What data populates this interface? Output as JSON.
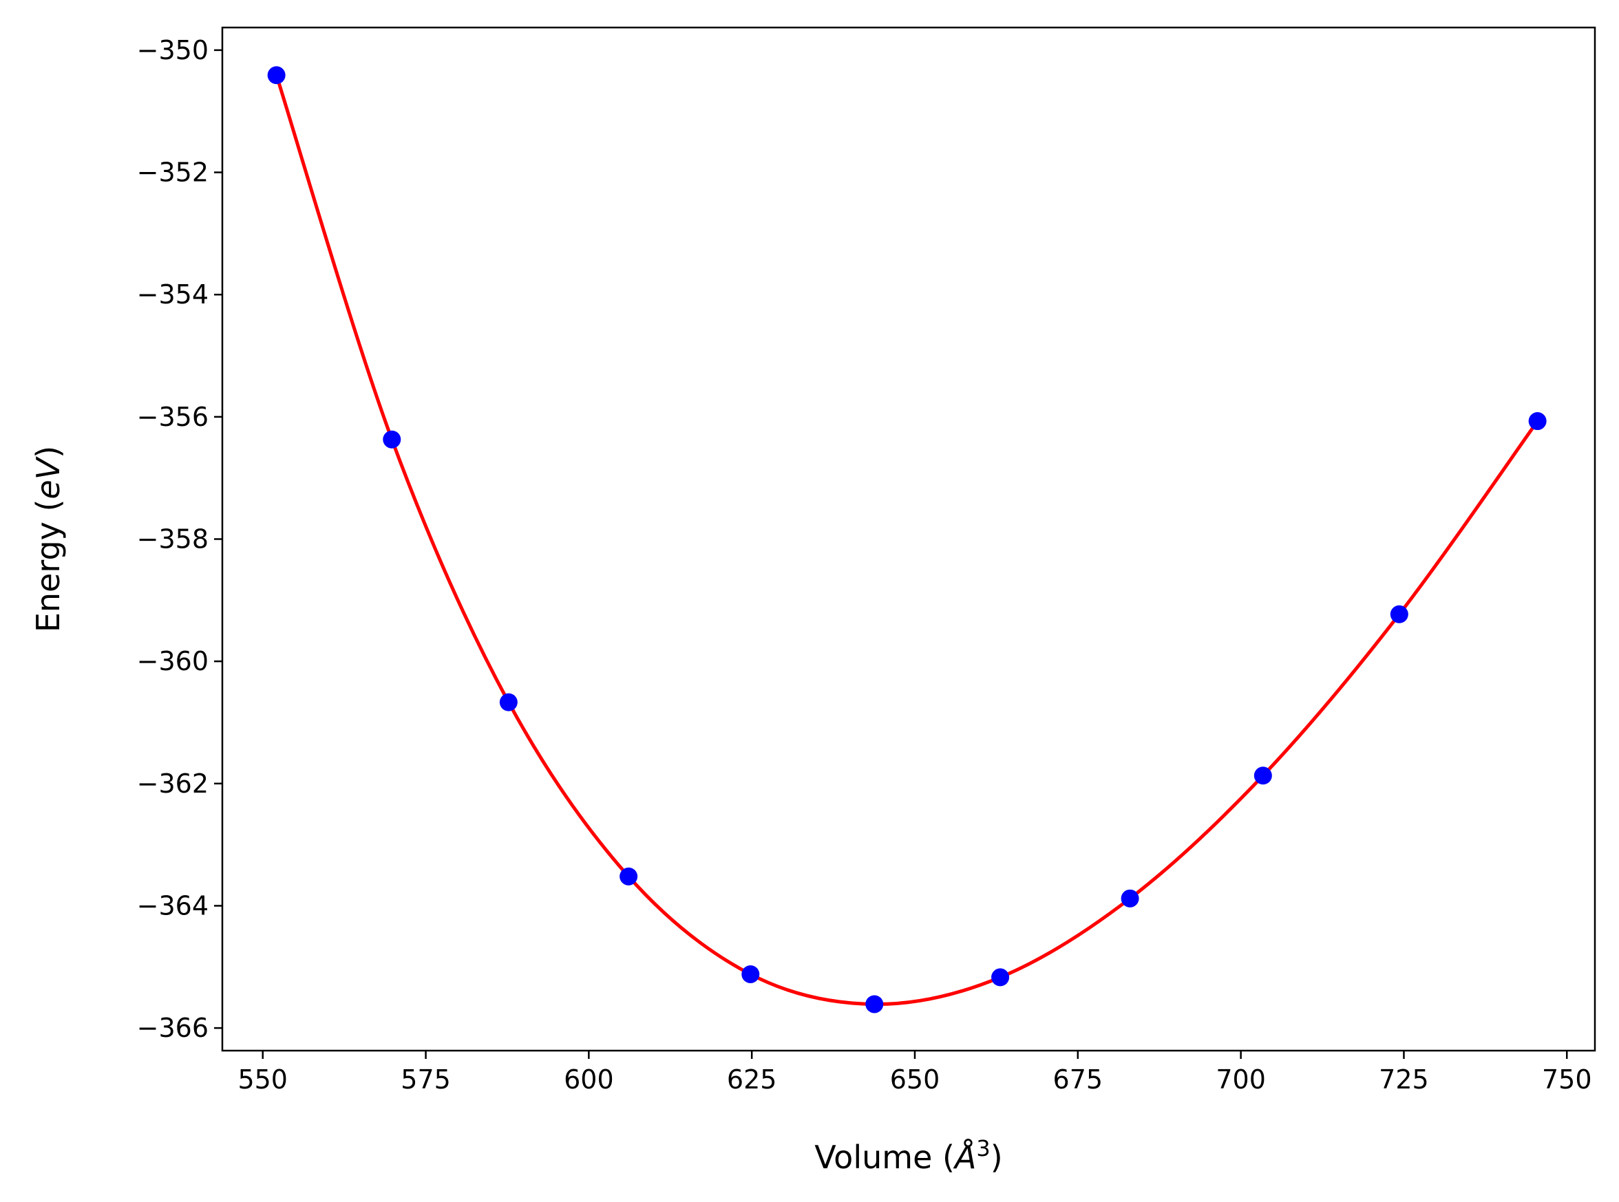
{
  "chart_data": {
    "type": "scatter",
    "xlabel": {
      "prefix": "Volume (",
      "math": "Å",
      "superscript": "3",
      "suffix": ")"
    },
    "ylabel": {
      "prefix": "Energy (",
      "math": "eV",
      "suffix": ")"
    },
    "xlim": [
      543.8,
      754.3
    ],
    "ylim": [
      -366.37,
      -349.63
    ],
    "xticks": [
      550,
      575,
      600,
      625,
      650,
      675,
      700,
      725,
      750
    ],
    "yticks": [
      -350,
      -352,
      -354,
      -356,
      -358,
      -360,
      -362,
      -364,
      -366
    ],
    "xtick_labels": [
      "550",
      "575",
      "600",
      "625",
      "650",
      "675",
      "700",
      "725",
      "750"
    ],
    "ytick_labels": [
      "−350",
      "−352",
      "−354",
      "−356",
      "−358",
      "−360",
      "−362",
      "−364",
      "−366"
    ],
    "grid": false,
    "series": [
      {
        "kind": "points",
        "color": "#0000ff",
        "x": [
          552.1,
          569.8,
          587.7,
          606.1,
          624.8,
          643.8,
          663.1,
          683.0,
          703.4,
          724.3,
          745.5
        ],
        "y": [
          -350.41,
          -356.37,
          -360.67,
          -363.52,
          -365.12,
          -365.61,
          -365.17,
          -363.88,
          -361.87,
          -359.23,
          -356.07
        ]
      },
      {
        "kind": "fit-line",
        "color": "#ff0000",
        "x_range": [
          552.1,
          745.5
        ]
      }
    ]
  }
}
